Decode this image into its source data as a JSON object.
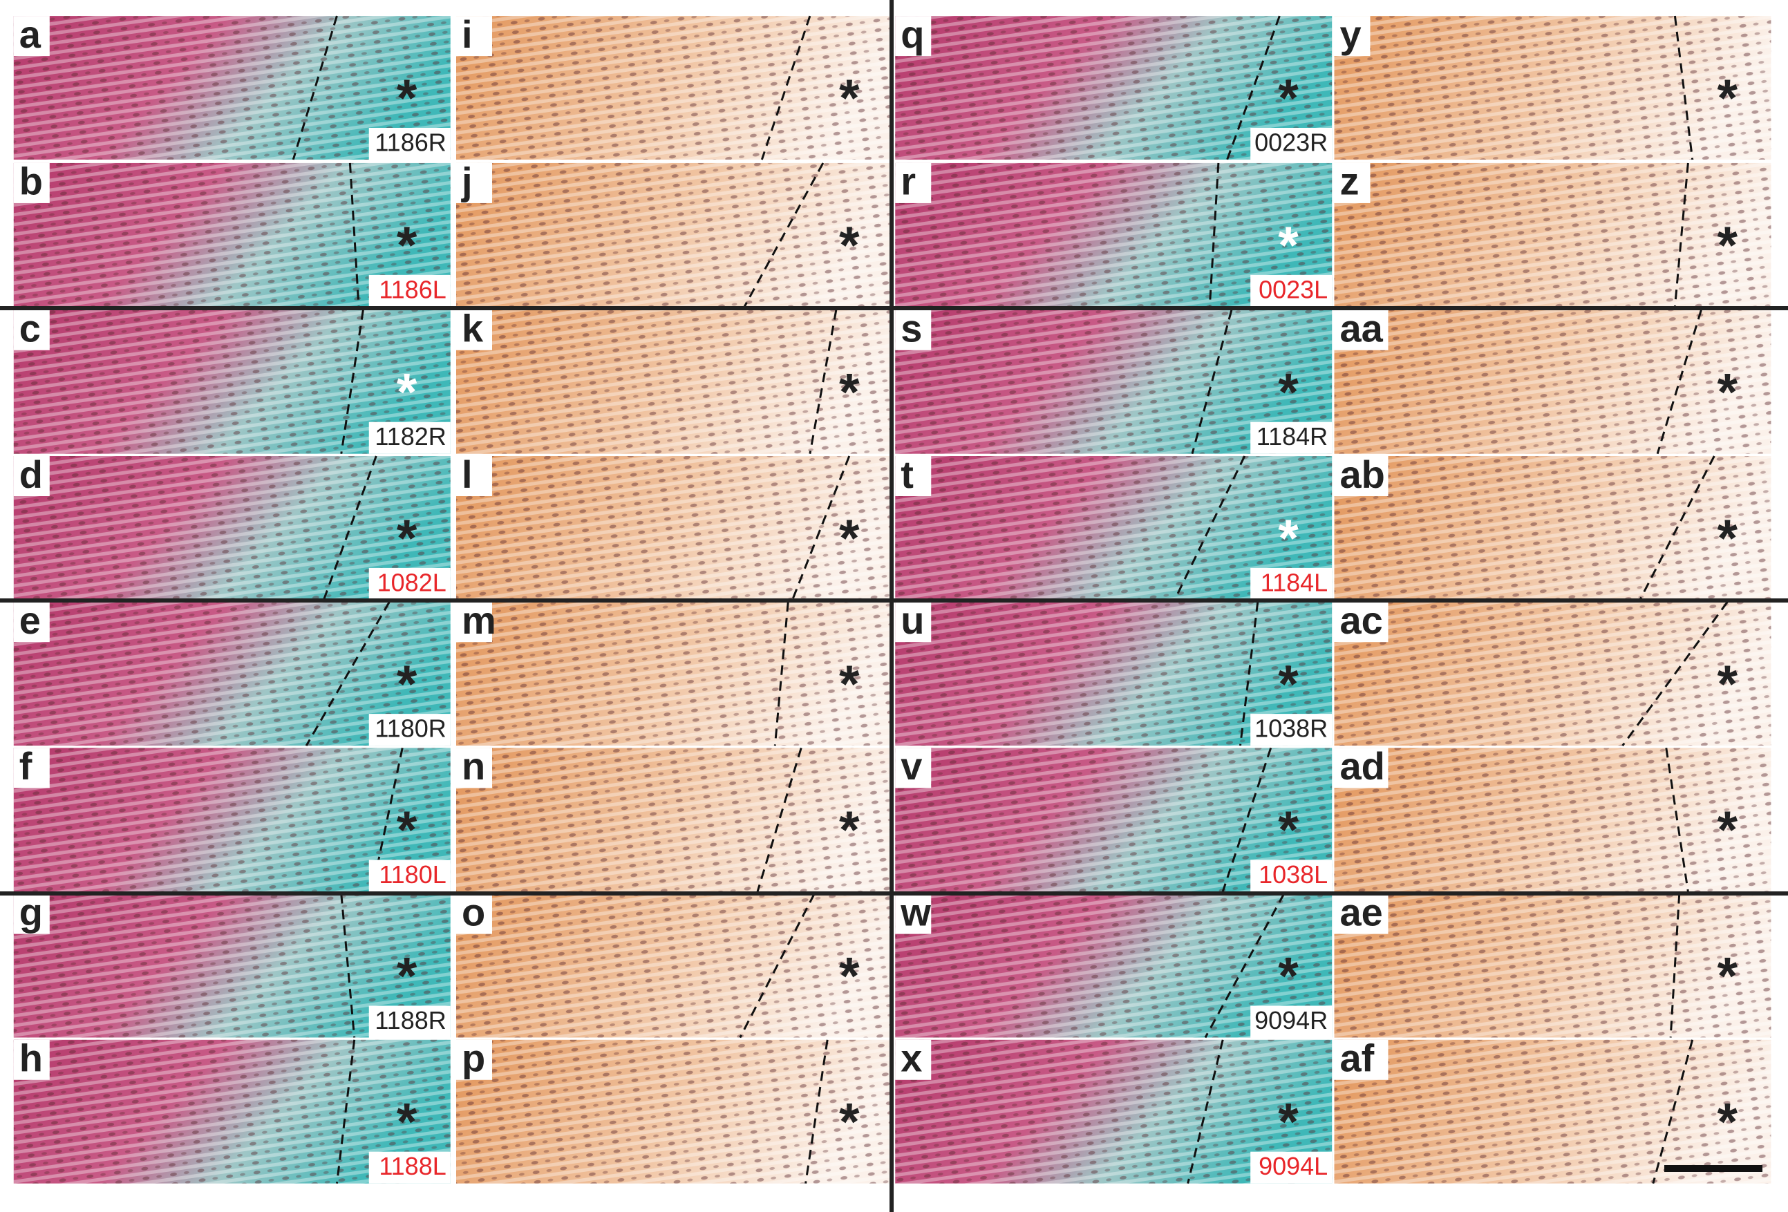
{
  "asterisk": "*",
  "panels": [
    {
      "letter": "a",
      "kind": "stain",
      "sample": "1186R",
      "sample_color": "#222222",
      "asterisk_color": "#222222"
    },
    {
      "letter": "b",
      "kind": "stain",
      "sample": "1186L",
      "sample_color": "#e8262a",
      "asterisk_color": "#222222"
    },
    {
      "letter": "c",
      "kind": "stain",
      "sample": "1182R",
      "sample_color": "#222222",
      "asterisk_color": "#ffffff"
    },
    {
      "letter": "d",
      "kind": "stain",
      "sample": "1082L",
      "sample_color": "#e8262a",
      "asterisk_color": "#222222"
    },
    {
      "letter": "e",
      "kind": "stain",
      "sample": "1180R",
      "sample_color": "#222222",
      "asterisk_color": "#222222"
    },
    {
      "letter": "f",
      "kind": "stain",
      "sample": "1180L",
      "sample_color": "#e8262a",
      "asterisk_color": "#222222"
    },
    {
      "letter": "g",
      "kind": "stain",
      "sample": "1188R",
      "sample_color": "#222222",
      "asterisk_color": "#222222"
    },
    {
      "letter": "h",
      "kind": "stain",
      "sample": "1188L",
      "sample_color": "#e8262a",
      "asterisk_color": "#222222"
    },
    {
      "letter": "i",
      "kind": "ihc",
      "asterisk_color": "#222222"
    },
    {
      "letter": "j",
      "kind": "ihc",
      "asterisk_color": "#222222"
    },
    {
      "letter": "k",
      "kind": "ihc",
      "asterisk_color": "#222222"
    },
    {
      "letter": "l",
      "kind": "ihc",
      "asterisk_color": "#222222"
    },
    {
      "letter": "m",
      "kind": "ihc",
      "asterisk_color": "#222222"
    },
    {
      "letter": "n",
      "kind": "ihc",
      "asterisk_color": "#222222"
    },
    {
      "letter": "o",
      "kind": "ihc",
      "asterisk_color": "#222222"
    },
    {
      "letter": "p",
      "kind": "ihc",
      "asterisk_color": "#222222"
    },
    {
      "letter": "q",
      "kind": "stain",
      "sample": "0023R",
      "sample_color": "#222222",
      "asterisk_color": "#222222"
    },
    {
      "letter": "r",
      "kind": "stain",
      "sample": "0023L",
      "sample_color": "#e8262a",
      "asterisk_color": "#ffffff"
    },
    {
      "letter": "s",
      "kind": "stain",
      "sample": "1184R",
      "sample_color": "#222222",
      "asterisk_color": "#222222"
    },
    {
      "letter": "t",
      "kind": "stain",
      "sample": "1184L",
      "sample_color": "#e8262a",
      "asterisk_color": "#ffffff"
    },
    {
      "letter": "u",
      "kind": "stain",
      "sample": "1038R",
      "sample_color": "#222222",
      "asterisk_color": "#222222"
    },
    {
      "letter": "v",
      "kind": "stain",
      "sample": "1038L",
      "sample_color": "#e8262a",
      "asterisk_color": "#222222"
    },
    {
      "letter": "w",
      "kind": "stain",
      "sample": "9094R",
      "sample_color": "#222222",
      "asterisk_color": "#222222"
    },
    {
      "letter": "x",
      "kind": "stain",
      "sample": "9094L",
      "sample_color": "#e8262a",
      "asterisk_color": "#222222"
    },
    {
      "letter": "y",
      "kind": "ihc",
      "asterisk_color": "#222222"
    },
    {
      "letter": "z",
      "kind": "ihc",
      "asterisk_color": "#222222"
    },
    {
      "letter": "aa",
      "kind": "ihc",
      "asterisk_color": "#222222"
    },
    {
      "letter": "ab",
      "kind": "ihc",
      "asterisk_color": "#222222"
    },
    {
      "letter": "ac",
      "kind": "ihc",
      "asterisk_color": "#222222"
    },
    {
      "letter": "ad",
      "kind": "ihc",
      "asterisk_color": "#222222"
    },
    {
      "letter": "ae",
      "kind": "ihc",
      "asterisk_color": "#222222"
    },
    {
      "letter": "af",
      "kind": "ihc",
      "asterisk_color": "#222222"
    }
  ]
}
